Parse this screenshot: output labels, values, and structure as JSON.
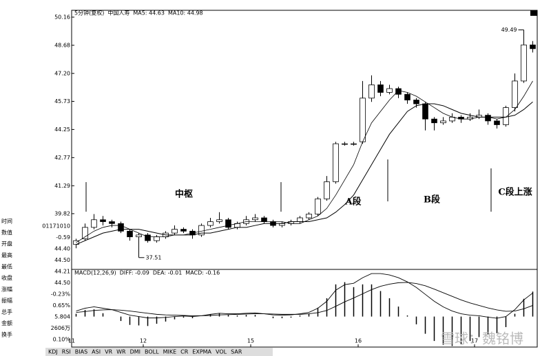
{
  "chart_data": {
    "type": "candlestick",
    "header": [
      "5分钟(复权)",
      "中国人寿",
      "MA5: 44.63",
      "MA10: 44.98"
    ],
    "macd_header": [
      "MACD(12,26,9)",
      "DIFF: -0.09",
      "DEA: -0.01",
      "MACD: -0.16"
    ],
    "annotations": [
      "中枢",
      "A段",
      "B段",
      "C段上涨"
    ],
    "watermark": "雪球：魏铭博",
    "info": [
      [
        "时间",
        "01171010"
      ],
      [
        "数值",
        "-0.59"
      ],
      [
        "开盘",
        "44.40"
      ],
      [
        "最高",
        "44.50"
      ],
      [
        "最低",
        "44.21"
      ],
      [
        "收盘",
        "44.50"
      ],
      [
        "涨幅",
        "-0.23%"
      ],
      [
        "振幅",
        "0.65%"
      ],
      [
        "总手",
        "5.804"
      ],
      [
        "金额",
        "2606万"
      ],
      [
        "换手",
        "0.10%"
      ]
    ],
    "tabs": [
      "KDJ",
      "RSI",
      "BIAS",
      "ASI",
      "VR",
      "WR",
      "DMI",
      "BOLL",
      "MIKE",
      "CR",
      "EXPMA",
      "VOL",
      "SAR"
    ],
    "xticks": [
      {
        "value": 0,
        "label": "11"
      },
      {
        "value": 8,
        "label": "12"
      },
      {
        "value": 20,
        "label": "15"
      },
      {
        "value": 32,
        "label": "16"
      },
      {
        "value": 45,
        "label": "17"
      }
    ],
    "ylim": [
      36.96,
      50.52
    ],
    "yticks": [
      50.16,
      48.68,
      {
        "value": 47.2,
        "label": "47.20"
      },
      45.73,
      44.25,
      42.77,
      41.29,
      39.82
    ],
    "open": [
      38.2,
      38.5,
      39.1,
      39.5,
      39.4,
      39.3,
      38.9,
      38.6,
      38.7,
      38.4,
      38.6,
      38.8,
      39.0,
      38.9,
      38.7,
      39.2,
      39.4,
      39.5,
      39.1,
      39.3,
      39.5,
      39.6,
      39.4,
      39.2,
      39.3,
      39.4,
      39.6,
      39.8,
      40.6,
      41.5,
      43.5,
      43.5,
      43.6,
      45.9,
      46.6,
      46.2,
      46.4,
      46.1,
      45.8,
      45.6,
      44.8,
      44.6,
      44.7,
      44.9,
      44.8,
      44.9,
      45.0,
      44.7,
      44.5,
      45.4,
      46.8,
      48.7
    ],
    "high": [
      38.5,
      39.3,
      39.8,
      39.7,
      39.5,
      39.4,
      39.0,
      38.8,
      38.8,
      38.7,
      38.9,
      39.2,
      39.1,
      39.0,
      39.3,
      39.6,
      39.9,
      39.6,
      39.4,
      39.7,
      39.8,
      39.7,
      39.5,
      39.4,
      39.5,
      39.7,
      39.9,
      40.7,
      41.8,
      43.6,
      43.6,
      43.6,
      46.8,
      47.1,
      46.8,
      46.6,
      46.5,
      46.2,
      45.9,
      45.7,
      44.9,
      44.9,
      45.1,
      45.0,
      45.1,
      45.3,
      45.1,
      44.8,
      45.5,
      47.2,
      49.49,
      48.9
    ],
    "low": [
      38.0,
      38.4,
      39.0,
      39.2,
      39.1,
      38.8,
      38.4,
      37.51,
      38.3,
      38.3,
      38.5,
      38.7,
      38.8,
      38.5,
      38.6,
      39.1,
      39.3,
      39.0,
      39.0,
      39.2,
      39.4,
      39.3,
      39.1,
      39.1,
      39.2,
      39.3,
      39.5,
      39.7,
      40.5,
      41.4,
      43.4,
      43.4,
      43.5,
      45.7,
      46.0,
      46.1,
      45.9,
      45.6,
      45.4,
      44.2,
      44.2,
      44.5,
      44.6,
      44.6,
      44.7,
      44.8,
      44.5,
      44.3,
      44.4,
      45.2,
      46.7,
      48.3
    ],
    "close": [
      38.4,
      39.1,
      39.5,
      39.4,
      39.3,
      38.9,
      38.6,
      38.7,
      38.4,
      38.6,
      38.8,
      39.0,
      38.9,
      38.7,
      39.2,
      39.4,
      39.5,
      39.1,
      39.3,
      39.5,
      39.6,
      39.4,
      39.2,
      39.3,
      39.4,
      39.6,
      39.8,
      40.6,
      41.5,
      43.5,
      43.5,
      43.5,
      45.9,
      46.6,
      46.2,
      46.4,
      46.1,
      45.8,
      45.6,
      44.8,
      44.6,
      44.7,
      44.9,
      44.8,
      44.9,
      45.0,
      44.7,
      44.5,
      45.4,
      46.8,
      48.7,
      48.5
    ],
    "series": [
      {
        "name": "MA5",
        "color": "#000000",
        "values": [
          38.3,
          38.6,
          38.9,
          39.1,
          39.2,
          39.2,
          39.0,
          38.8,
          38.6,
          38.6,
          38.6,
          38.7,
          38.7,
          38.8,
          38.9,
          39.0,
          39.1,
          39.2,
          39.3,
          39.4,
          39.4,
          39.4,
          39.4,
          39.4,
          39.3,
          39.3,
          39.5,
          39.7,
          40.1,
          40.8,
          41.6,
          42.4,
          43.6,
          44.6,
          45.2,
          45.8,
          46.3,
          46.2,
          46.0,
          45.7,
          45.4,
          45.1,
          44.9,
          44.8,
          44.8,
          44.9,
          44.9,
          44.8,
          44.9,
          45.3,
          46.0,
          46.8
        ]
      },
      {
        "name": "MA10",
        "color": "#000000",
        "values": [
          38.2,
          38.4,
          38.6,
          38.8,
          38.9,
          39.0,
          39.0,
          39.0,
          38.9,
          38.8,
          38.7,
          38.7,
          38.7,
          38.7,
          38.8,
          38.8,
          38.9,
          39.0,
          39.1,
          39.1,
          39.2,
          39.3,
          39.3,
          39.3,
          39.4,
          39.4,
          39.4,
          39.5,
          39.6,
          39.9,
          40.3,
          40.8,
          41.6,
          42.4,
          43.2,
          44.0,
          44.6,
          45.2,
          45.5,
          45.6,
          45.6,
          45.5,
          45.3,
          45.1,
          45.0,
          44.9,
          44.9,
          44.9,
          44.9,
          45.0,
          45.3,
          45.7
        ]
      }
    ],
    "macd_ylim": [
      -1.1,
      1.7
    ],
    "diff": [
      0.2,
      0.3,
      0.35,
      0.3,
      0.25,
      0.15,
      0.05,
      0.0,
      -0.05,
      -0.05,
      -0.03,
      0.0,
      0.02,
      0.0,
      0.03,
      0.08,
      0.12,
      0.1,
      0.1,
      0.12,
      0.13,
      0.1,
      0.06,
      0.05,
      0.06,
      0.1,
      0.15,
      0.3,
      0.55,
      0.95,
      1.15,
      1.2,
      1.4,
      1.55,
      1.55,
      1.5,
      1.4,
      1.25,
      1.05,
      0.8,
      0.55,
      0.35,
      0.2,
      0.1,
      0.05,
      0.03,
      -0.02,
      -0.06,
      0.0,
      0.25,
      0.6,
      0.85
    ],
    "dea": [
      0.15,
      0.18,
      0.22,
      0.24,
      0.25,
      0.23,
      0.2,
      0.16,
      0.12,
      0.08,
      0.06,
      0.05,
      0.04,
      0.03,
      0.03,
      0.04,
      0.06,
      0.07,
      0.08,
      0.09,
      0.1,
      0.1,
      0.09,
      0.08,
      0.08,
      0.08,
      0.1,
      0.14,
      0.22,
      0.37,
      0.53,
      0.67,
      0.82,
      0.97,
      1.09,
      1.17,
      1.22,
      1.23,
      1.19,
      1.11,
      0.99,
      0.86,
      0.73,
      0.6,
      0.49,
      0.4,
      0.31,
      0.24,
      0.19,
      0.2,
      0.28,
      0.4
    ],
    "macd": [
      0.1,
      0.24,
      0.26,
      0.12,
      0.0,
      -0.16,
      -0.3,
      -0.32,
      -0.34,
      -0.26,
      -0.18,
      -0.1,
      -0.04,
      -0.06,
      0.0,
      0.08,
      0.12,
      0.06,
      0.04,
      0.06,
      0.06,
      0.0,
      -0.06,
      -0.06,
      -0.04,
      0.04,
      0.1,
      0.32,
      0.66,
      1.16,
      1.24,
      1.06,
      1.16,
      1.16,
      0.92,
      0.66,
      0.36,
      0.04,
      -0.28,
      -0.62,
      -0.88,
      -1.02,
      -1.06,
      -1.0,
      -0.88,
      -0.74,
      -0.66,
      -0.6,
      -0.38,
      0.1,
      0.64,
      0.9
    ]
  }
}
